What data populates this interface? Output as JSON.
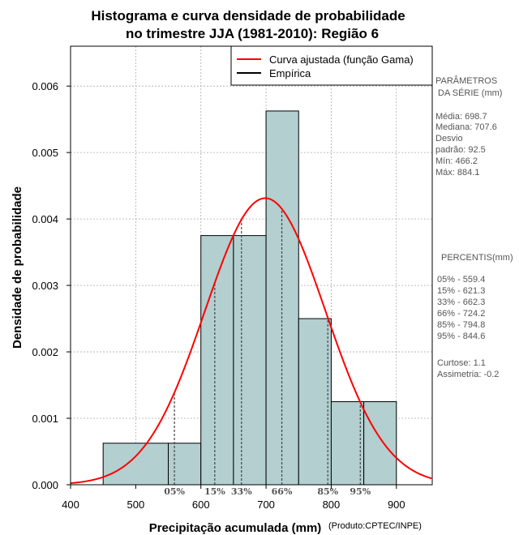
{
  "chart_data": {
    "type": "bar",
    "title_line1": "Histograma e curva densidade de probabilidade",
    "title_line2": "no trimestre JJA (1981-2010): Região 6",
    "xlabel": "Precipitação acumulada (mm)",
    "ylabel": "Densidade de probabilidade",
    "credit": "(Produto:CPTEC/INPE)",
    "xlim": [
      400,
      955
    ],
    "ylim": [
      0,
      0.0066
    ],
    "x_ticks": [
      "400",
      "500",
      "600",
      "700",
      "800",
      "900"
    ],
    "y_ticks": [
      "0.000",
      "0.001",
      "0.002",
      "0.003",
      "0.004",
      "0.005",
      "0.006"
    ],
    "grid": true,
    "histogram": {
      "bins": [
        {
          "from": 450,
          "to": 550,
          "density": 0.000625
        },
        {
          "from": 550,
          "to": 600,
          "density": 0.000625
        },
        {
          "from": 600,
          "to": 650,
          "density": 0.00375
        },
        {
          "from": 650,
          "to": 700,
          "density": 0.00375
        },
        {
          "from": 700,
          "to": 750,
          "density": 0.005625
        },
        {
          "from": 750,
          "to": 800,
          "density": 0.0025
        },
        {
          "from": 800,
          "to": 850,
          "density": 0.00125
        },
        {
          "from": 850,
          "to": 900,
          "density": 0.00125
        }
      ],
      "fill": "#b3cfcf"
    },
    "fitted_curve": {
      "name": "Curva ajustada (função Gama)",
      "color": "#ff0000",
      "mean": 698.7,
      "sd": 92.5
    },
    "empirical_legend": {
      "name": "Empírica",
      "color": "#000000"
    },
    "legend_position": "top-right",
    "percentile_markers": [
      {
        "label": "05%",
        "x": 559.4
      },
      {
        "label": "15%",
        "x": 621.3
      },
      {
        "label": "33%",
        "x": 662.3
      },
      {
        "label": "66%",
        "x": 724.2
      },
      {
        "label": "85%",
        "x": 794.8
      },
      {
        "label": "95%",
        "x": 844.6
      }
    ]
  },
  "side_panel": {
    "params_title_1": "PARÂMETROS",
    "params_title_2": "DA SÉRIE (mm)",
    "media": "Média:  698.7",
    "mediana": "Mediana:  707.6",
    "desvio_1": "Desvio",
    "desvio_2": "padrão:  92.5",
    "min": "Mín:  466.2",
    "max": "Máx:  884.1",
    "percentis_title": "PERCENTIS(mm)",
    "p05": "05% -  559.4",
    "p15": "15% -  621.3",
    "p33": "33% -  662.3",
    "p66": "66% -  724.2",
    "p85": "85% -  794.8",
    "p95": "95% -  844.6",
    "curtose": "Curtose:  1.1",
    "assimetria": "Assimetria:  -0.2"
  }
}
